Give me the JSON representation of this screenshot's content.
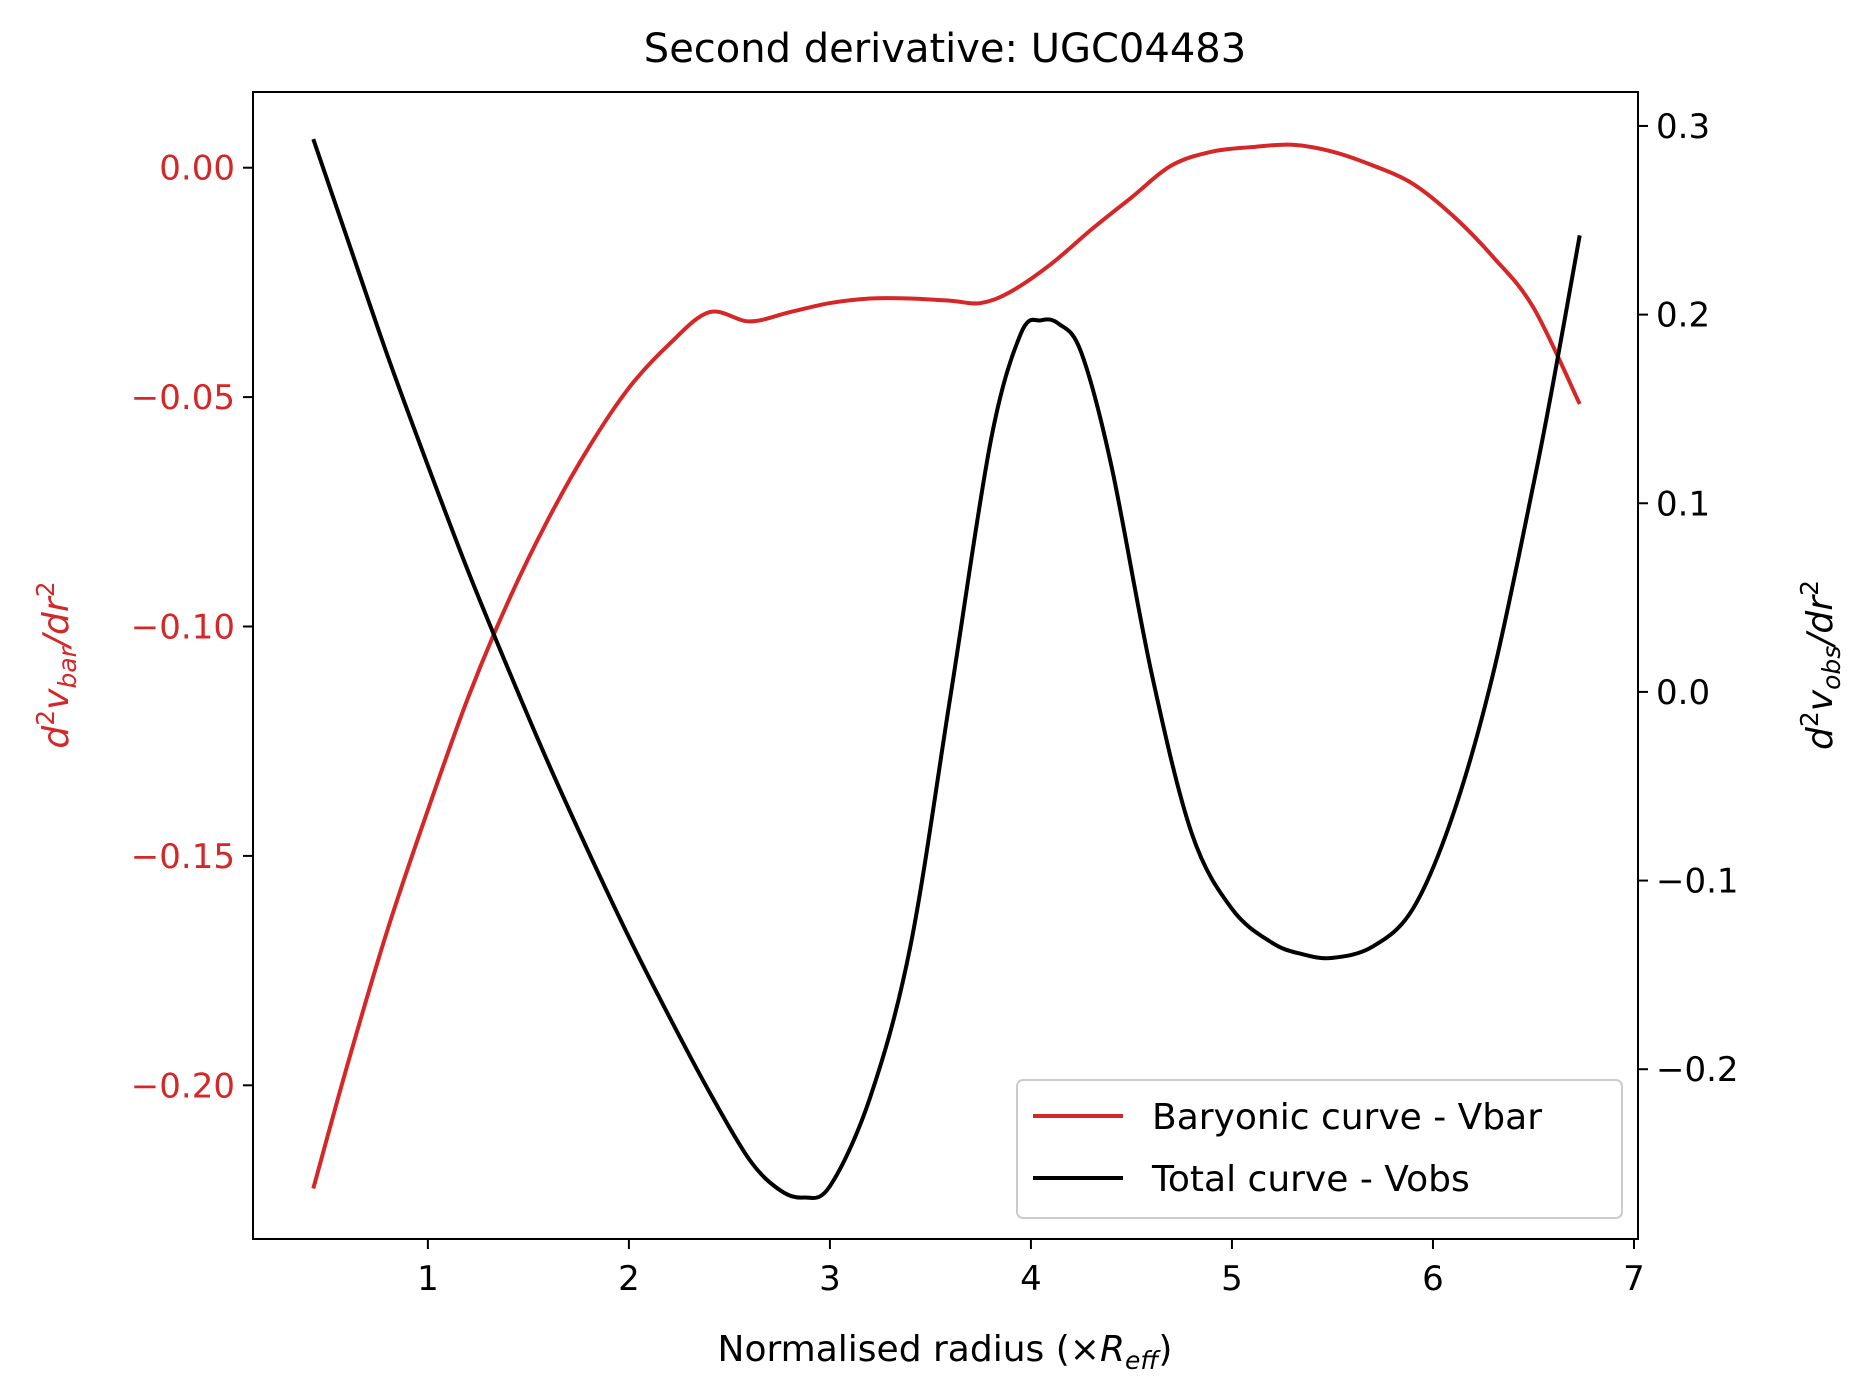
{
  "chart_data": {
    "type": "line",
    "title": "Second derivative: UGC04483",
    "xlabel_prefix": "Normalised radius (×",
    "xlabel_sym": "R",
    "xlabel_sub": "eff",
    "xlabel_suffix": ")",
    "ylabel_left": {
      "d": "d",
      "sup": "2",
      "v": "v",
      "sub": "bar",
      "rest": "/dr",
      "sup2": "2"
    },
    "ylabel_right": {
      "d": "d",
      "sup": "2",
      "v": "v",
      "sub": "obs",
      "rest": "/dr",
      "sup2": "2"
    },
    "xlim": [
      0.13,
      7.02
    ],
    "ylim_left": [
      -0.2335,
      0.0165
    ],
    "ylim_right": [
      -0.29,
      0.318
    ],
    "xticks": [
      1,
      2,
      3,
      4,
      5,
      6,
      7
    ],
    "xtick_labels": [
      "1",
      "2",
      "3",
      "4",
      "5",
      "6",
      "7"
    ],
    "yticks_left": [
      0.0,
      -0.05,
      -0.1,
      -0.15,
      -0.2
    ],
    "ytick_labels_left": [
      "0.00",
      "−0.05",
      "−0.10",
      "−0.15",
      "−0.20"
    ],
    "yticks_right": [
      0.3,
      0.2,
      0.1,
      0.0,
      -0.1,
      -0.2
    ],
    "ytick_labels_right": [
      "0.3",
      "0.2",
      "0.1",
      "0.0",
      "−0.1",
      "−0.2"
    ],
    "legend_position": "lower right",
    "colors": {
      "vbar": "#d62728",
      "vobs": "#000000",
      "left_axis_text": "#d62728"
    },
    "series": [
      {
        "name": "Baryonic curve - Vbar",
        "axis": "left",
        "color": "#d62728",
        "x": [
          0.43,
          0.6,
          0.8,
          1.0,
          1.2,
          1.4,
          1.6,
          1.8,
          2.0,
          2.2,
          2.4,
          2.6,
          2.8,
          3.0,
          3.2,
          3.4,
          3.6,
          3.75,
          3.9,
          4.1,
          4.3,
          4.5,
          4.7,
          4.9,
          5.1,
          5.3,
          5.5,
          5.7,
          5.9,
          6.1,
          6.3,
          6.5,
          6.73
        ],
        "values": [
          -0.2225,
          -0.1955,
          -0.166,
          -0.14,
          -0.1155,
          -0.0945,
          -0.0765,
          -0.061,
          -0.048,
          -0.0385,
          -0.0315,
          -0.0335,
          -0.0315,
          -0.0295,
          -0.0285,
          -0.0285,
          -0.029,
          -0.0295,
          -0.027,
          -0.021,
          -0.0135,
          -0.0065,
          0.0005,
          0.0035,
          0.0045,
          0.005,
          0.0035,
          0.0005,
          -0.0035,
          -0.0105,
          -0.0195,
          -0.0305,
          -0.0515
        ]
      },
      {
        "name": "Total curve - Vobs",
        "axis": "right",
        "color": "#000000",
        "x": [
          0.43,
          0.6,
          0.8,
          1.0,
          1.2,
          1.4,
          1.6,
          1.8,
          2.0,
          2.2,
          2.4,
          2.6,
          2.75,
          2.87,
          3.0,
          3.2,
          3.4,
          3.6,
          3.8,
          3.95,
          4.05,
          4.14,
          4.25,
          4.4,
          4.6,
          4.8,
          5.0,
          5.2,
          5.35,
          5.5,
          5.7,
          5.9,
          6.1,
          6.3,
          6.5,
          6.6,
          6.73
        ],
        "values": [
          0.293,
          0.24,
          0.178,
          0.12,
          0.064,
          0.012,
          -0.038,
          -0.085,
          -0.13,
          -0.172,
          -0.212,
          -0.248,
          -0.264,
          -0.268,
          -0.262,
          -0.215,
          -0.135,
          -0.002,
          0.133,
          0.19,
          0.197,
          0.195,
          0.18,
          0.12,
          0.01,
          -0.075,
          -0.115,
          -0.133,
          -0.139,
          -0.141,
          -0.135,
          -0.115,
          -0.065,
          0.01,
          0.11,
          0.165,
          0.242
        ]
      }
    ]
  }
}
